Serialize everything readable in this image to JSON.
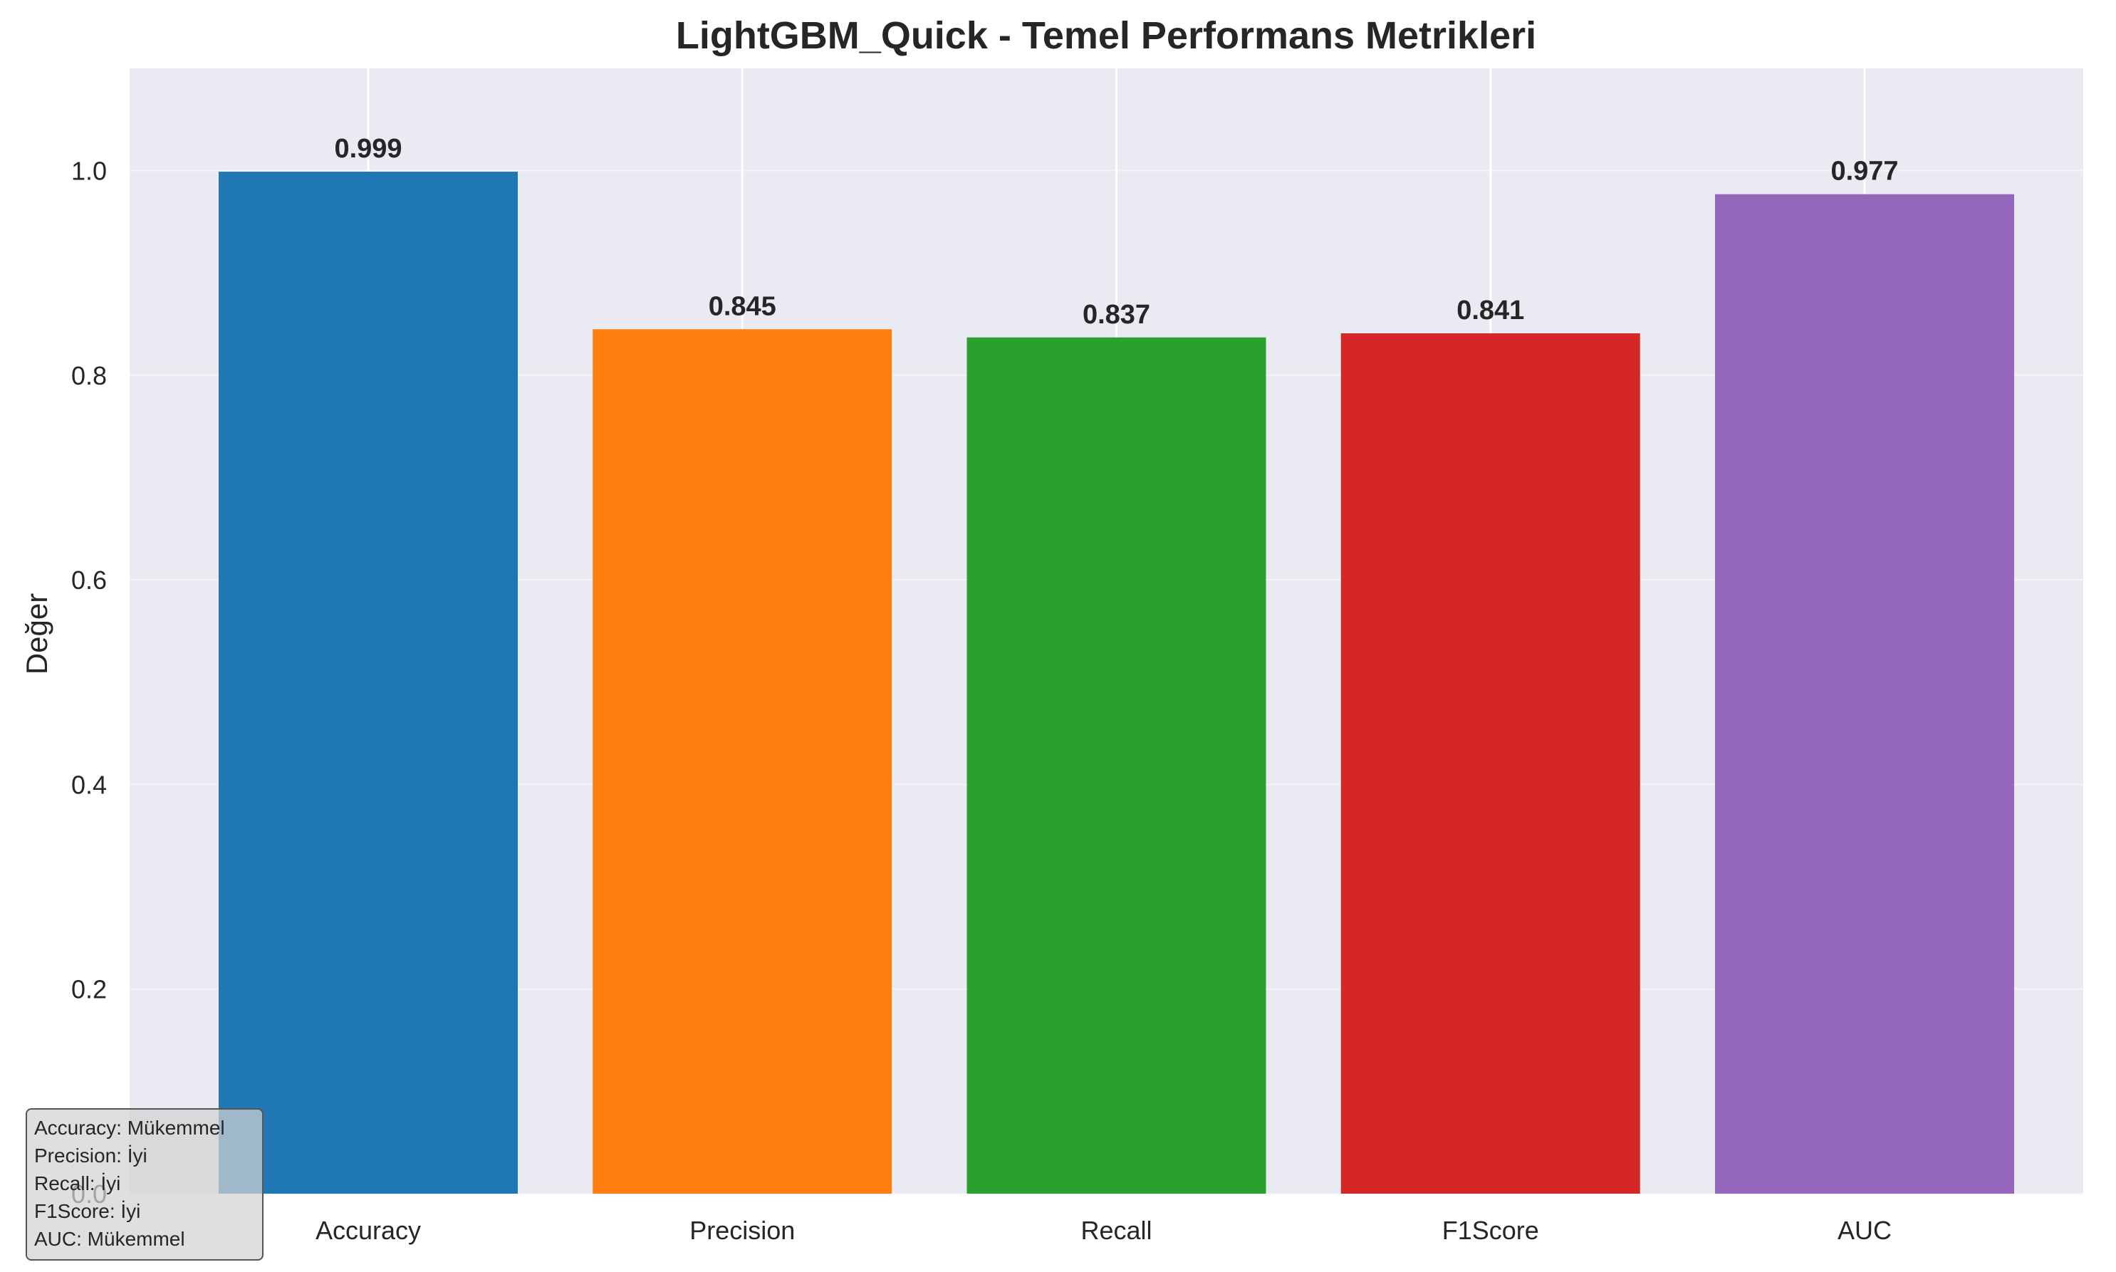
{
  "chart_data": {
    "type": "bar",
    "title": "LightGBM_Quick - Temel Performans Metrikleri",
    "xlabel": "",
    "ylabel": "Değer",
    "categories": [
      "Accuracy",
      "Precision",
      "Recall",
      "F1Score",
      "AUC"
    ],
    "values": [
      0.999,
      0.845,
      0.837,
      0.841,
      0.977
    ],
    "value_labels": [
      "0.999",
      "0.845",
      "0.837",
      "0.841",
      "0.977"
    ],
    "colors": [
      "#1f77b4",
      "#ff7f0e",
      "#2ca02c",
      "#d62728",
      "#9467bd"
    ],
    "ylim": [
      0,
      1.1
    ],
    "yticks": [
      0.0,
      0.2,
      0.4,
      0.6,
      0.8,
      1.0
    ],
    "ytick_labels": [
      "0.0",
      "0.2",
      "0.4",
      "0.6",
      "0.8",
      "1.0"
    ],
    "grid": true,
    "background": "#eaeaf2",
    "annotation_box": {
      "placement": "bottom-left",
      "lines": [
        "Accuracy: Mükemmel",
        "Precision: İyi",
        "Recall: İyi",
        "F1Score: İyi",
        "AUC: Mükemmel"
      ]
    }
  }
}
